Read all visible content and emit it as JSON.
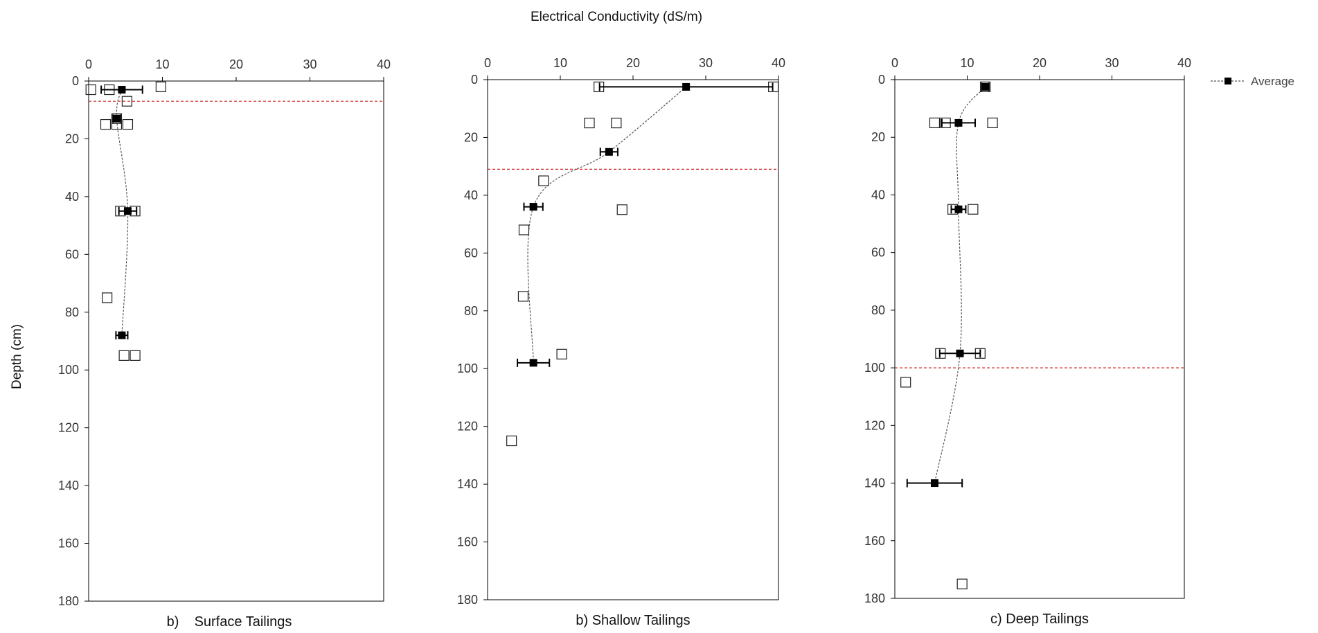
{
  "title": "Electrical Conductivity (dS/m)",
  "ylabel": "Depth (cm)",
  "legend": {
    "label": "Average",
    "position": "top-right"
  },
  "colors": {
    "axis": "#000000",
    "marker": "#000000",
    "trend": "#555555",
    "threshold": "#cc2222",
    "background": "#ffffff"
  },
  "chart_data": [
    {
      "type": "scatter",
      "subtitle": "b)    Surface Tailings",
      "xlim": [
        0,
        40
      ],
      "xticks": [
        0,
        10,
        20,
        30,
        40
      ],
      "ylim": [
        0,
        180
      ],
      "yticks": [
        0,
        20,
        40,
        60,
        80,
        100,
        120,
        140,
        160,
        180
      ],
      "y_inverted": true,
      "x_axis_position": "top",
      "threshold_depth": 7,
      "samples": [
        {
          "x": 0.3,
          "y": 3
        },
        {
          "x": 2.8,
          "y": 3
        },
        {
          "x": 9.8,
          "y": 2
        },
        {
          "x": 5.2,
          "y": 7
        },
        {
          "x": 3.8,
          "y": 13
        },
        {
          "x": 2.3,
          "y": 15
        },
        {
          "x": 3.8,
          "y": 15
        },
        {
          "x": 5.3,
          "y": 15
        },
        {
          "x": 4.3,
          "y": 45
        },
        {
          "x": 6.3,
          "y": 45
        },
        {
          "x": 2.5,
          "y": 75
        },
        {
          "x": 4.8,
          "y": 95
        },
        {
          "x": 6.3,
          "y": 95
        }
      ],
      "series": [
        {
          "name": "Average",
          "points": [
            {
              "x": 4.5,
              "y": 3,
              "err": 2.8
            },
            {
              "x": 3.8,
              "y": 13,
              "err": 0.5
            },
            {
              "x": 5.3,
              "y": 45,
              "err": 1.2
            },
            {
              "x": 4.5,
              "y": 88,
              "err": 0.8
            }
          ]
        }
      ]
    },
    {
      "type": "scatter",
      "subtitle": "b) Shallow Tailings",
      "xlim": [
        0,
        40
      ],
      "xticks": [
        0,
        10,
        20,
        30,
        40
      ],
      "ylim": [
        0,
        180
      ],
      "yticks": [
        0,
        20,
        40,
        60,
        80,
        100,
        120,
        140,
        160,
        180
      ],
      "y_inverted": true,
      "x_axis_position": "top",
      "threshold_depth": 31,
      "samples": [
        {
          "x": 15.3,
          "y": 2.5
        },
        {
          "x": 39.3,
          "y": 2.5
        },
        {
          "x": 14.0,
          "y": 15
        },
        {
          "x": 17.7,
          "y": 15
        },
        {
          "x": 7.7,
          "y": 35
        },
        {
          "x": 18.5,
          "y": 45
        },
        {
          "x": 5.0,
          "y": 52
        },
        {
          "x": 4.9,
          "y": 75
        },
        {
          "x": 10.2,
          "y": 95
        },
        {
          "x": 3.3,
          "y": 125
        }
      ],
      "series": [
        {
          "name": "Average",
          "points": [
            {
              "x": 27.3,
              "y": 2.5,
              "err": 11.9
            },
            {
              "x": 16.7,
              "y": 25,
              "err": 1.2
            },
            {
              "x": 6.3,
              "y": 44,
              "err": 1.3
            },
            {
              "x": 6.3,
              "y": 98,
              "err": 2.2
            }
          ]
        }
      ]
    },
    {
      "type": "scatter",
      "subtitle": "c) Deep Tailings",
      "xlim": [
        0,
        40
      ],
      "xticks": [
        0,
        10,
        20,
        30,
        40
      ],
      "ylim": [
        0,
        180
      ],
      "yticks": [
        0,
        20,
        40,
        60,
        80,
        100,
        120,
        140,
        160,
        180
      ],
      "y_inverted": true,
      "x_axis_position": "top",
      "threshold_depth": 100,
      "samples": [
        {
          "x": 12.5,
          "y": 2.5
        },
        {
          "x": 5.5,
          "y": 15
        },
        {
          "x": 7.0,
          "y": 15
        },
        {
          "x": 13.5,
          "y": 15
        },
        {
          "x": 8.0,
          "y": 45
        },
        {
          "x": 10.8,
          "y": 45
        },
        {
          "x": 6.3,
          "y": 95
        },
        {
          "x": 11.8,
          "y": 95
        },
        {
          "x": 1.5,
          "y": 105
        },
        {
          "x": 9.3,
          "y": 175
        }
      ],
      "series": [
        {
          "name": "Average",
          "points": [
            {
              "x": 12.5,
              "y": 2.5,
              "err": 0.5
            },
            {
              "x": 8.8,
              "y": 15,
              "err": 2.3
            },
            {
              "x": 8.8,
              "y": 45,
              "err": 1.0
            },
            {
              "x": 9.0,
              "y": 95,
              "err": 2.8
            },
            {
              "x": 5.5,
              "y": 140,
              "err": 3.8
            }
          ]
        }
      ]
    }
  ]
}
